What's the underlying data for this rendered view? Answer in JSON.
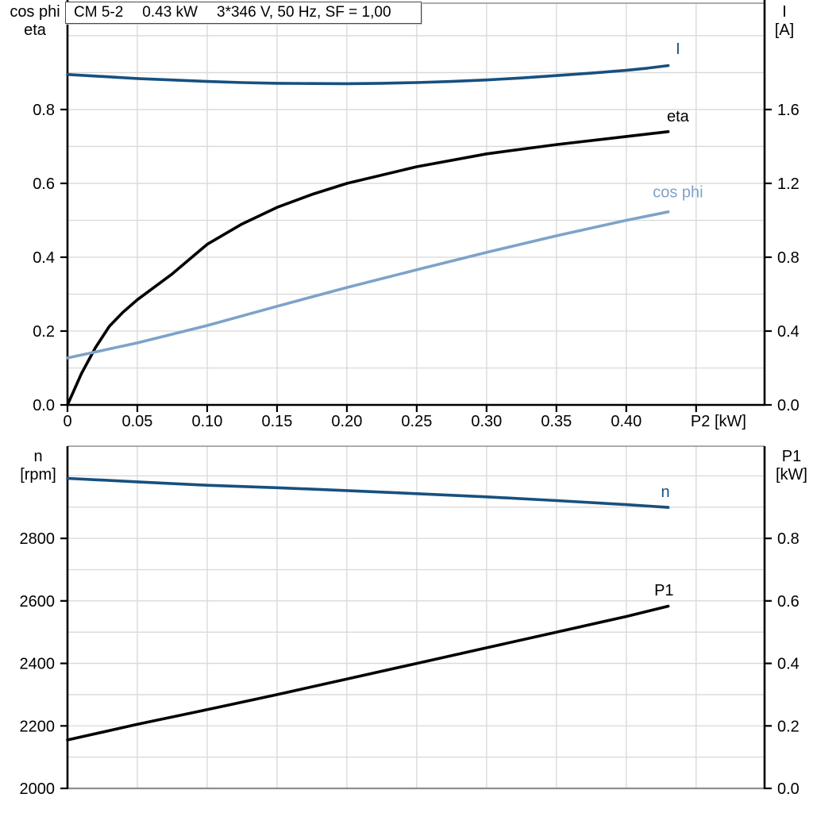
{
  "title_box": {
    "model": "CM 5-2",
    "power": "0.43 kW",
    "electrical": "3*346 V, 50 Hz, SF = 1,00"
  },
  "colors": {
    "dark_blue": "#17507f",
    "light_blue": "#7da3c8",
    "black": "#000000",
    "grid": "#d8d8d8",
    "frame": "#8f8f8f",
    "background": "#ffffff"
  },
  "chart_data": [
    {
      "type": "line",
      "id": "motor-top",
      "title": "CM 5-2  0.43 kW  3*346 V, 50 Hz, SF = 1,00",
      "xlabel": "P2 [kW]",
      "xlabel_at": 0.466,
      "xlim": [
        0,
        0.499
      ],
      "x_grid_step": 0.05,
      "grid": true,
      "legend_position": "inline-labels",
      "x_ticks": [
        {
          "v": 0.0,
          "label": "0"
        },
        {
          "v": 0.05,
          "label": "0.05"
        },
        {
          "v": 0.1,
          "label": "0.10"
        },
        {
          "v": 0.15,
          "label": "0.15"
        },
        {
          "v": 0.2,
          "label": "0.20"
        },
        {
          "v": 0.25,
          "label": "0.25"
        },
        {
          "v": 0.3,
          "label": "0.30"
        },
        {
          "v": 0.35,
          "label": "0.35"
        },
        {
          "v": 0.4,
          "label": "0.40"
        }
      ],
      "left_axis": {
        "label_lines": [
          "cos phi",
          "eta"
        ],
        "lim": [
          0,
          1.088
        ],
        "grid_step": 0.1,
        "ticks": [
          {
            "v": 0.0,
            "label": "0.0"
          },
          {
            "v": 0.2,
            "label": "0.2"
          },
          {
            "v": 0.4,
            "label": "0.4"
          },
          {
            "v": 0.6,
            "label": "0.6"
          },
          {
            "v": 0.8,
            "label": "0.8"
          }
        ]
      },
      "right_axis": {
        "label_lines": [
          "I",
          "[A]"
        ],
        "lim": [
          0,
          2.176
        ],
        "ticks": [
          {
            "v": 0.0,
            "label": "0.0"
          },
          {
            "v": 0.4,
            "label": "0.4"
          },
          {
            "v": 0.8,
            "label": "0.8"
          },
          {
            "v": 1.2,
            "label": "1.2"
          },
          {
            "v": 1.6,
            "label": "1.6"
          }
        ]
      },
      "series": [
        {
          "name": "I",
          "axis": "right",
          "color": "dark_blue",
          "label": {
            "text": "I",
            "x": 0.437,
            "y": 1.9
          },
          "points": [
            [
              0,
              1.79
            ],
            [
              0.05,
              1.768
            ],
            [
              0.1,
              1.752
            ],
            [
              0.125,
              1.746
            ],
            [
              0.15,
              1.742
            ],
            [
              0.175,
              1.741
            ],
            [
              0.2,
              1.74
            ],
            [
              0.225,
              1.742
            ],
            [
              0.25,
              1.746
            ],
            [
              0.275,
              1.752
            ],
            [
              0.3,
              1.76
            ],
            [
              0.325,
              1.771
            ],
            [
              0.35,
              1.784
            ],
            [
              0.375,
              1.797
            ],
            [
              0.4,
              1.812
            ],
            [
              0.415,
              1.824
            ],
            [
              0.43,
              1.838
            ]
          ]
        },
        {
          "name": "eta",
          "axis": "left",
          "color": "black",
          "label": {
            "text": "eta",
            "x": 0.437,
            "y": 0.768
          },
          "points": [
            [
              0,
              0
            ],
            [
              0.01,
              0.085
            ],
            [
              0.02,
              0.155
            ],
            [
              0.03,
              0.213
            ],
            [
              0.04,
              0.252
            ],
            [
              0.05,
              0.285
            ],
            [
              0.075,
              0.355
            ],
            [
              0.1,
              0.435
            ],
            [
              0.125,
              0.49
            ],
            [
              0.15,
              0.535
            ],
            [
              0.175,
              0.57
            ],
            [
              0.2,
              0.6
            ],
            [
              0.25,
              0.645
            ],
            [
              0.3,
              0.68
            ],
            [
              0.35,
              0.705
            ],
            [
              0.4,
              0.727
            ],
            [
              0.43,
              0.74
            ]
          ]
        },
        {
          "name": "cos phi",
          "axis": "left",
          "color": "light_blue",
          "label": {
            "text": "cos phi",
            "x": 0.437,
            "y": 0.562
          },
          "points": [
            [
              0,
              0.127
            ],
            [
              0.05,
              0.168
            ],
            [
              0.1,
              0.215
            ],
            [
              0.15,
              0.267
            ],
            [
              0.2,
              0.318
            ],
            [
              0.25,
              0.366
            ],
            [
              0.3,
              0.413
            ],
            [
              0.35,
              0.458
            ],
            [
              0.4,
              0.5
            ],
            [
              0.43,
              0.523
            ]
          ]
        }
      ]
    },
    {
      "type": "line",
      "id": "motor-bottom",
      "title": "",
      "xlabel": "",
      "xlim": [
        0,
        0.499
      ],
      "x_grid_step": 0.05,
      "grid": true,
      "legend_position": "inline-labels",
      "x_ticks": [],
      "left_axis": {
        "label_lines": [
          "n",
          "[rpm]"
        ],
        "lim": [
          2000,
          3095
        ],
        "grid_step": 100,
        "ticks": [
          {
            "v": 2000,
            "label": "2000"
          },
          {
            "v": 2200,
            "label": "2200"
          },
          {
            "v": 2400,
            "label": "2400"
          },
          {
            "v": 2600,
            "label": "2600"
          },
          {
            "v": 2800,
            "label": "2800"
          }
        ]
      },
      "right_axis": {
        "label_lines": [
          "P1",
          "[kW]"
        ],
        "lim": [
          0,
          1.095
        ],
        "ticks": [
          {
            "v": 0.0,
            "label": "0.0"
          },
          {
            "v": 0.2,
            "label": "0.2"
          },
          {
            "v": 0.4,
            "label": "0.4"
          },
          {
            "v": 0.6,
            "label": "0.6"
          },
          {
            "v": 0.8,
            "label": "0.8"
          }
        ]
      },
      "series": [
        {
          "name": "n",
          "axis": "left",
          "color": "dark_blue",
          "label": {
            "text": "n",
            "x": 0.428,
            "y": 2932
          },
          "points": [
            [
              0,
              2992
            ],
            [
              0.05,
              2981
            ],
            [
              0.1,
              2970
            ],
            [
              0.15,
              2962
            ],
            [
              0.2,
              2953
            ],
            [
              0.25,
              2943
            ],
            [
              0.3,
              2933
            ],
            [
              0.35,
              2921
            ],
            [
              0.4,
              2908
            ],
            [
              0.43,
              2899
            ]
          ]
        },
        {
          "name": "P1",
          "axis": "right",
          "color": "black",
          "label": {
            "text": "P1",
            "x": 0.427,
            "y": 0.617
          },
          "points": [
            [
              0,
              0.155
            ],
            [
              0.05,
              0.205
            ],
            [
              0.1,
              0.252
            ],
            [
              0.15,
              0.3
            ],
            [
              0.2,
              0.35
            ],
            [
              0.25,
              0.4
            ],
            [
              0.3,
              0.45
            ],
            [
              0.35,
              0.5
            ],
            [
              0.4,
              0.55
            ],
            [
              0.43,
              0.583
            ]
          ]
        }
      ]
    }
  ]
}
